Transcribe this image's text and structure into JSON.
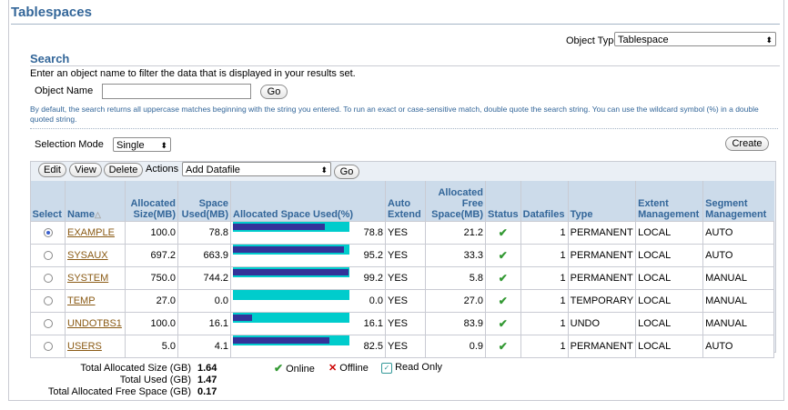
{
  "page_title": "Tablespaces",
  "object_type": {
    "label": "Object Type",
    "value": "Tablespace"
  },
  "search": {
    "header": "Search",
    "instructions": "Enter an object name to filter the data that is displayed in your results set.",
    "object_name_label": "Object Name",
    "object_name_value": "",
    "go_label": "Go",
    "hint": "By default, the search returns all uppercase matches beginning with the string you entered. To run an exact or case-sensitive match, double quote the search string. You can use the wildcard symbol (%) in a double quoted string."
  },
  "selection_mode": {
    "label": "Selection Mode",
    "value": "Single"
  },
  "toolbar": {
    "create_label": "Create",
    "edit_label": "Edit",
    "view_label": "View",
    "delete_label": "Delete",
    "actions_label": "Actions",
    "actions_value": "Add Datafile",
    "go_label": "Go"
  },
  "table": {
    "headers": {
      "select": "Select",
      "name": "Name",
      "allocated_size": [
        "Allocated",
        "Size(MB)"
      ],
      "space_used": [
        "Space",
        "Used(MB)"
      ],
      "allocated_space_used": "Allocated Space Used(%)",
      "auto_extend": [
        "Auto",
        "Extend"
      ],
      "allocated_free": [
        "Allocated",
        "Free",
        "Space(MB)"
      ],
      "status": "Status",
      "datafiles": "Datafiles",
      "type": "Type",
      "extent_mgmt": [
        "Extent",
        "Management"
      ],
      "segment_mgmt": [
        "Segment",
        "Management"
      ]
    },
    "rows": [
      {
        "selected": true,
        "name": "EXAMPLE",
        "allocated": "100.0",
        "used": "78.8",
        "pct": 78.8,
        "pct_label": "78.8",
        "auto": "YES",
        "free": "21.2",
        "datafiles": "1",
        "type": "PERMANENT",
        "extent": "LOCAL",
        "segment": "AUTO"
      },
      {
        "selected": false,
        "name": "SYSAUX",
        "allocated": "697.2",
        "used": "663.9",
        "pct": 95.2,
        "pct_label": "95.2",
        "auto": "YES",
        "free": "33.3",
        "datafiles": "1",
        "type": "PERMANENT",
        "extent": "LOCAL",
        "segment": "AUTO"
      },
      {
        "selected": false,
        "name": "SYSTEM",
        "allocated": "750.0",
        "used": "744.2",
        "pct": 99.2,
        "pct_label": "99.2",
        "auto": "YES",
        "free": "5.8",
        "datafiles": "1",
        "type": "PERMANENT",
        "extent": "LOCAL",
        "segment": "MANUAL"
      },
      {
        "selected": false,
        "name": "TEMP",
        "allocated": "27.0",
        "used": "0.0",
        "pct": 0.0,
        "pct_label": "0.0",
        "auto": "YES",
        "free": "27.0",
        "datafiles": "1",
        "type": "TEMPORARY",
        "extent": "LOCAL",
        "segment": "MANUAL"
      },
      {
        "selected": false,
        "name": "UNDOTBS1",
        "allocated": "100.0",
        "used": "16.1",
        "pct": 16.1,
        "pct_label": "16.1",
        "auto": "YES",
        "free": "83.9",
        "datafiles": "1",
        "type": "UNDO",
        "extent": "LOCAL",
        "segment": "MANUAL"
      },
      {
        "selected": false,
        "name": "USERS",
        "allocated": "5.0",
        "used": "4.1",
        "pct": 82.5,
        "pct_label": "82.5",
        "auto": "YES",
        "free": "0.9",
        "datafiles": "1",
        "type": "PERMANENT",
        "extent": "LOCAL",
        "segment": "AUTO"
      }
    ]
  },
  "summary": {
    "total_allocated_label": "Total Allocated Size (GB)",
    "total_allocated_value": "1.64",
    "total_used_label": "Total Used (GB)",
    "total_used_value": "1.47",
    "total_free_label": "Total Allocated Free Space (GB)",
    "total_free_value": "0.17"
  },
  "legend": {
    "online": "Online",
    "offline": "Offline",
    "read_only": "Read Only"
  },
  "colors": {
    "bar_used": "#333399",
    "bar_free": "#00cccc",
    "header_text": "#336699"
  }
}
